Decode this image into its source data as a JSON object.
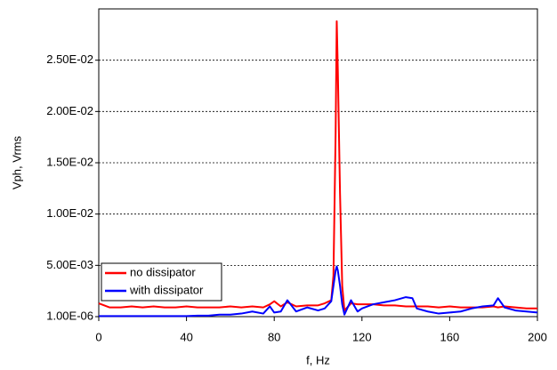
{
  "chart_data": {
    "type": "line",
    "xlabel": "f, Hz",
    "ylabel": "Vph, Vrms",
    "x": [
      0,
      5,
      10,
      15,
      20,
      25,
      30,
      35,
      40,
      45,
      50,
      55,
      60,
      65,
      70,
      75,
      78,
      80,
      83,
      86,
      90,
      95,
      100,
      103,
      106,
      107,
      108,
      108.5,
      109,
      110,
      111,
      112,
      115,
      118,
      120,
      125,
      130,
      135,
      140,
      143,
      145,
      150,
      155,
      160,
      165,
      170,
      175,
      180,
      182,
      185,
      190,
      195,
      200
    ],
    "series": [
      {
        "name": "no dissipator",
        "color": "#ff0000",
        "values": [
          0.0013,
          0.0009,
          0.0009,
          0.001,
          0.0009,
          0.001,
          0.0009,
          0.0009,
          0.001,
          0.0009,
          0.0009,
          0.0009,
          0.001,
          0.0009,
          0.001,
          0.0009,
          0.0012,
          0.0015,
          0.001,
          0.0014,
          0.001,
          0.0011,
          0.0011,
          0.0013,
          0.0016,
          0.004,
          0.018,
          0.0288,
          0.024,
          0.012,
          0.003,
          0.0006,
          0.0013,
          0.0012,
          0.0012,
          0.0012,
          0.0011,
          0.0011,
          0.001,
          0.001,
          0.001,
          0.001,
          0.0009,
          0.001,
          0.0009,
          0.0009,
          0.0009,
          0.001,
          0.0009,
          0.001,
          0.0009,
          0.0008,
          0.0008
        ]
      },
      {
        "name": "with dissipator",
        "color": "#0000ff",
        "values": [
          5e-05,
          5e-05,
          5e-05,
          5e-05,
          5e-05,
          5e-05,
          5e-05,
          5e-05,
          5e-05,
          0.0001,
          0.0001,
          0.0002,
          0.0002,
          0.0003,
          0.0005,
          0.0003,
          0.001,
          0.0004,
          0.0005,
          0.0016,
          0.0005,
          0.0009,
          0.0006,
          0.0008,
          0.0015,
          0.003,
          0.0045,
          0.0049,
          0.0045,
          0.003,
          0.0012,
          0.0002,
          0.0016,
          0.0005,
          0.0008,
          0.0012,
          0.0014,
          0.0016,
          0.0019,
          0.0018,
          0.0008,
          0.0005,
          0.0003,
          0.0004,
          0.0005,
          0.0008,
          0.001,
          0.0011,
          0.0018,
          0.0009,
          0.0006,
          0.0005,
          0.0004
        ]
      }
    ],
    "xlim": [
      0,
      200
    ],
    "xticks": [
      0,
      40,
      80,
      120,
      160,
      200
    ],
    "ylim": [
      1e-06,
      0.03
    ],
    "yticks": [
      {
        "value": 1e-06,
        "label": "1.00E-06"
      },
      {
        "value": 0.005,
        "label": "5.00E-03"
      },
      {
        "value": 0.01,
        "label": "1.00E-02"
      },
      {
        "value": 0.015,
        "label": "1.50E-02"
      },
      {
        "value": 0.02,
        "label": "2.00E-02"
      },
      {
        "value": 0.025,
        "label": "2.50E-02"
      }
    ],
    "grid": true,
    "legend": "lower left"
  }
}
